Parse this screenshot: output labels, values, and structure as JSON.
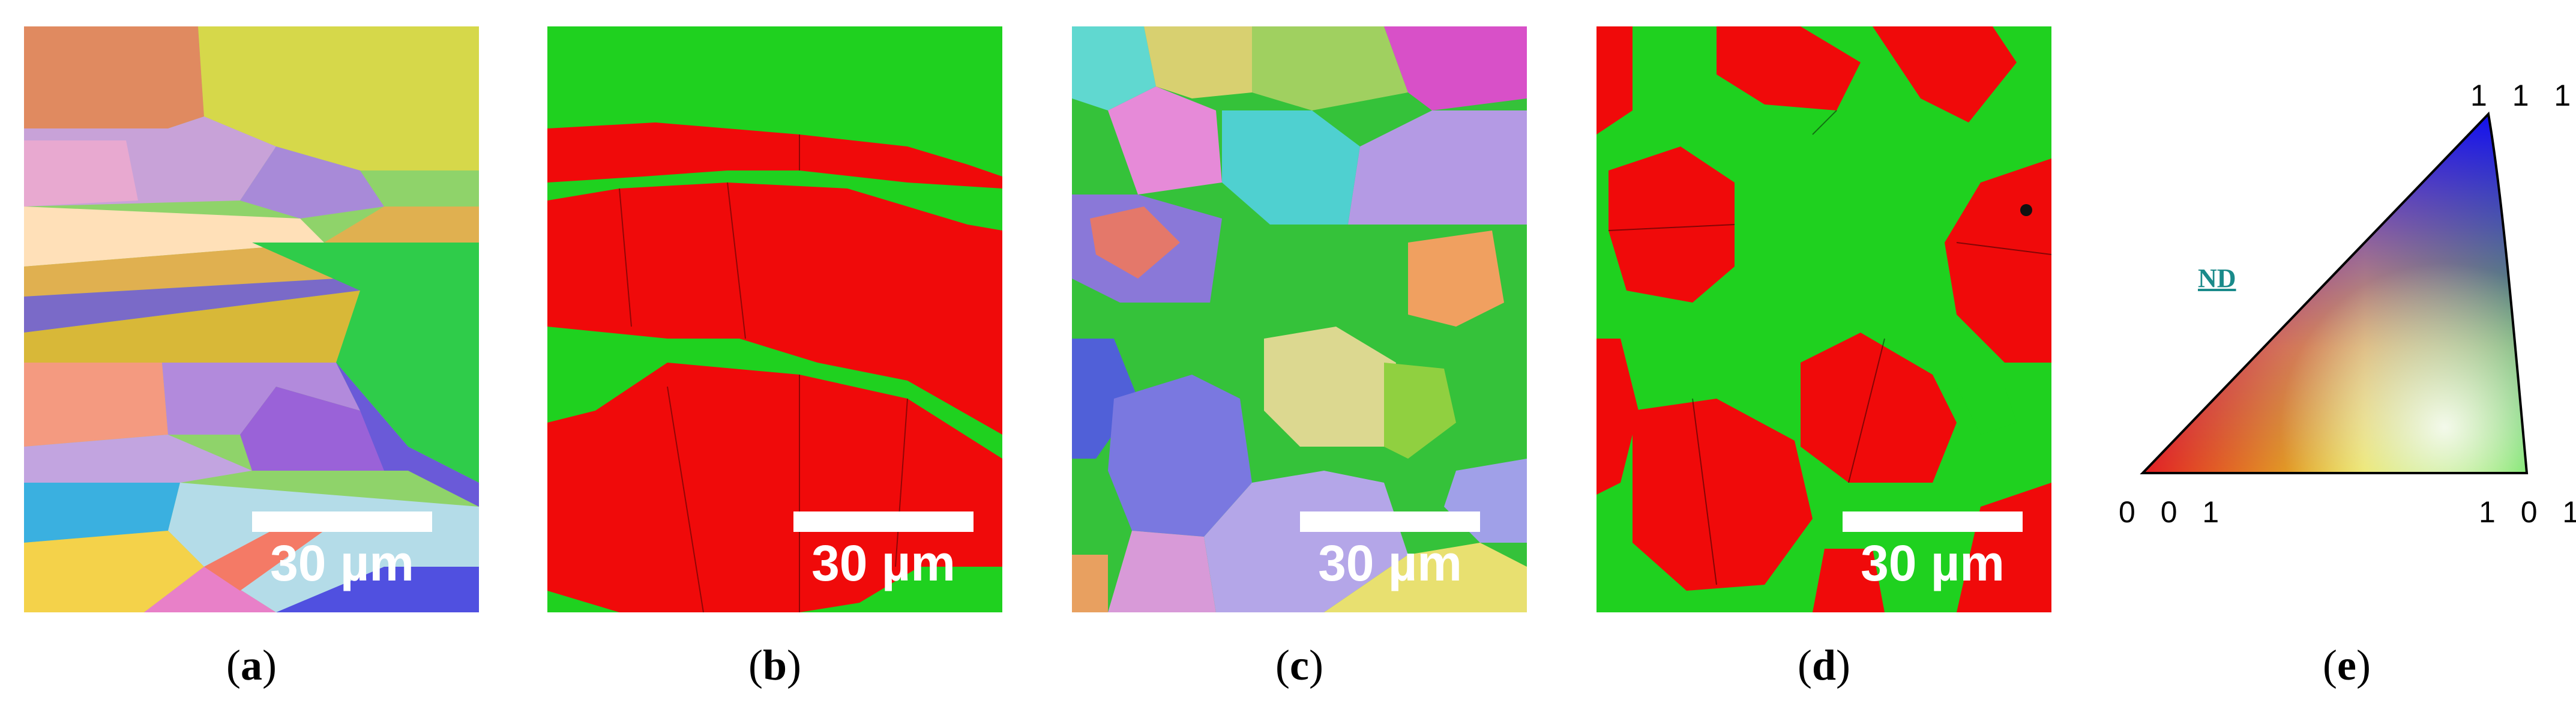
{
  "figure": {
    "panels": [
      {
        "caption_prefix": "(",
        "letter": "a",
        "caption_suffix": ")",
        "scale_label": "30 µm"
      },
      {
        "caption_prefix": "(",
        "letter": "b",
        "caption_suffix": ")",
        "scale_label": "30 µm"
      },
      {
        "caption_prefix": "(",
        "letter": "c",
        "caption_suffix": ")",
        "scale_label": "30 µm"
      },
      {
        "caption_prefix": "(",
        "letter": "d",
        "caption_suffix": ")",
        "scale_label": "30 µm"
      }
    ],
    "legend": {
      "caption_prefix": "(",
      "letter": "e",
      "caption_suffix": ")",
      "label": "ND",
      "corners": {
        "top": "1 1 1",
        "left": "0 0 1",
        "right": "1 0 1"
      }
    },
    "colors": {
      "phase_red": "#f00a0a",
      "phase_green": "#1fd11f",
      "nd_label": "#1a8a8a",
      "scale_bar": "#ffffff"
    }
  }
}
